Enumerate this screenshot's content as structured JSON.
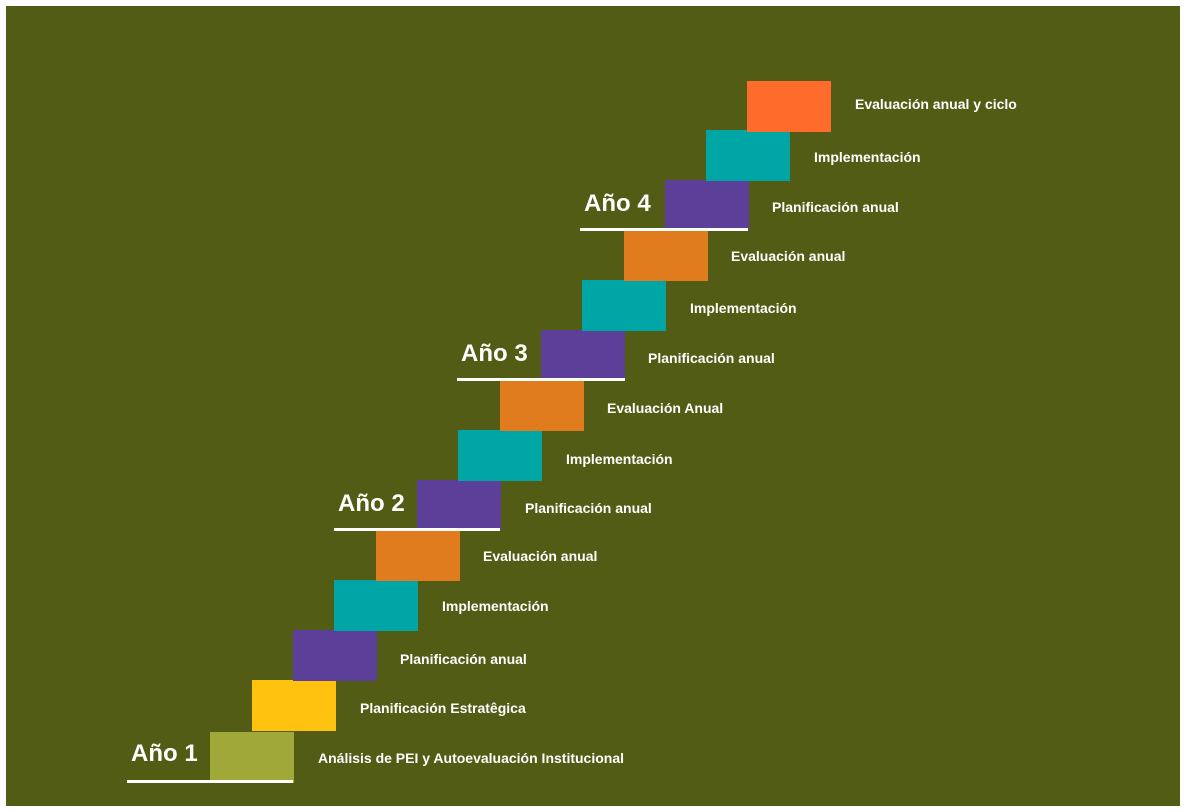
{
  "colors": {
    "background": "#535c15",
    "analysis": "#a0a83a",
    "strategic": "#ffc20e",
    "planning": "#5b3f99",
    "implementation": "#00a5a5",
    "evaluation": "#e07b1e",
    "final_evaluation": "#ff6b2b",
    "text": "#ffffff"
  },
  "years": [
    {
      "label": "Año 1"
    },
    {
      "label": "Año 2"
    },
    {
      "label": "Año 3"
    },
    {
      "label": "Año 4"
    }
  ],
  "steps": [
    {
      "label": "Análisis de PEI y Autoevaluación Institucional",
      "color": "#a0a83a"
    },
    {
      "label": "Planificación Estratêgica",
      "color": "#ffc20e"
    },
    {
      "label": "Planificación anual",
      "color": "#5b3f99"
    },
    {
      "label": "Implementación",
      "color": "#00a5a5"
    },
    {
      "label": "Evaluación anual",
      "color": "#e07b1e"
    },
    {
      "label": "Planificación anual",
      "color": "#5b3f99"
    },
    {
      "label": "Implementación",
      "color": "#00a5a5"
    },
    {
      "label": "Evaluación Anual",
      "color": "#e07b1e"
    },
    {
      "label": "Planificación anual",
      "color": "#5b3f99"
    },
    {
      "label": "Implementación",
      "color": "#00a5a5"
    },
    {
      "label": "Evaluación anual",
      "color": "#e07b1e"
    },
    {
      "label": "Planificación anual",
      "color": "#5b3f99"
    },
    {
      "label": "Implementación",
      "color": "#00a5a5"
    },
    {
      "label": "Evaluación anual y ciclo",
      "color": "#ff6b2b"
    }
  ]
}
